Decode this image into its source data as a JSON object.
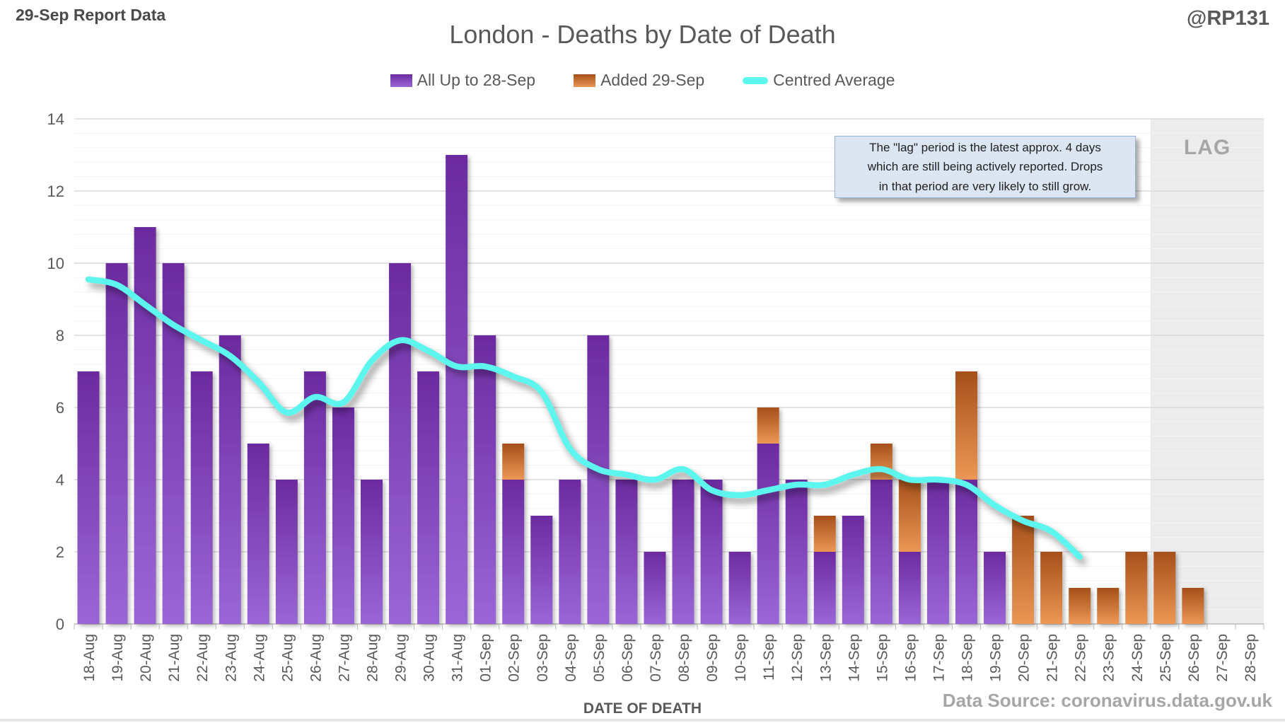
{
  "header": {
    "report_label": "29-Sep Report Data",
    "handle": "@RP131"
  },
  "title": "London - Deaths by Date of Death",
  "legend": [
    {
      "label": "All Up to 28-Sep",
      "swatch": "purple-gradient-box"
    },
    {
      "label": "Added 29-Sep",
      "swatch": "orange-gradient-box"
    },
    {
      "label": "Centred Average",
      "swatch": "cyan-line"
    }
  ],
  "annotation": {
    "lines": [
      "The \"lag\" period is the latest approx. 4 days",
      "which are still being actively reported. Drops",
      "in that period are very likely to still grow."
    ]
  },
  "lag_label": "LAG",
  "x_axis_title": "DATE OF DEATH",
  "source": "Data Source: coronavirus.data.gov.uk",
  "colors": {
    "purple_top": "#6c2ba0",
    "purple_bottom": "#9a66d6",
    "orange_top": "#a5501a",
    "orange_bottom": "#ec9755",
    "line_cyan": "#5bf6ee",
    "lag_background": "#ececec",
    "major_gridline": "#dadada",
    "minor_gridline": "#f3f3f3",
    "axis_line": "#bcbcbc",
    "axis_text": "#595959"
  },
  "chart_data": {
    "type": "bar",
    "stacked": true,
    "title": "London - Deaths by Date of Death",
    "xlabel": "DATE OF DEATH",
    "ylabel": "",
    "ylim": [
      0,
      14
    ],
    "y_major": 2,
    "y_minor": 0.4,
    "grid": true,
    "legend_position": "top",
    "categories": [
      "18-Aug",
      "19-Aug",
      "20-Aug",
      "21-Aug",
      "22-Aug",
      "23-Aug",
      "24-Aug",
      "25-Aug",
      "26-Aug",
      "27-Aug",
      "28-Aug",
      "29-Aug",
      "30-Aug",
      "31-Aug",
      "01-Sep",
      "02-Sep",
      "03-Sep",
      "04-Sep",
      "05-Sep",
      "06-Sep",
      "07-Sep",
      "08-Sep",
      "09-Sep",
      "10-Sep",
      "11-Sep",
      "12-Sep",
      "13-Sep",
      "14-Sep",
      "15-Sep",
      "16-Sep",
      "17-Sep",
      "18-Sep",
      "19-Sep",
      "20-Sep",
      "21-Sep",
      "22-Sep",
      "23-Sep",
      "24-Sep",
      "25-Sep",
      "26-Sep",
      "27-Sep",
      "28-Sep"
    ],
    "series": [
      {
        "name": "All Up to 28-Sep",
        "type": "bar",
        "values": [
          7,
          10,
          11,
          10,
          7,
          8,
          5,
          4,
          7,
          6,
          4,
          10,
          7,
          13,
          8,
          4,
          3,
          4,
          8,
          4,
          2,
          4,
          4,
          2,
          5,
          4,
          2,
          3,
          4,
          2,
          4,
          4,
          2,
          0,
          0,
          0,
          0,
          0,
          0,
          0,
          0,
          0
        ]
      },
      {
        "name": "Added 29-Sep",
        "type": "bar",
        "values": [
          0,
          0,
          0,
          0,
          0,
          0,
          0,
          0,
          0,
          0,
          0,
          0,
          0,
          0,
          0,
          1,
          0,
          0,
          0,
          0,
          0,
          0,
          0,
          0,
          1,
          0,
          1,
          0,
          1,
          2,
          0,
          3,
          0,
          3,
          2,
          1,
          1,
          2,
          2,
          1,
          0,
          0
        ]
      },
      {
        "name": "Centred Average",
        "type": "line",
        "values": [
          9.55,
          9.4,
          8.85,
          8.29,
          7.86,
          7.43,
          6.71,
          5.86,
          6.29,
          6.14,
          7.29,
          7.86,
          7.57,
          7.14,
          7.14,
          6.86,
          6.43,
          4.86,
          4.29,
          4.14,
          4.0,
          4.29,
          3.71,
          3.57,
          3.71,
          3.86,
          3.86,
          4.14,
          4.29,
          4.0,
          4.0,
          3.86,
          3.29,
          2.86,
          2.57,
          1.86,
          null,
          null,
          null,
          null,
          null,
          null
        ]
      }
    ],
    "lag_region": {
      "start_category": "25-Sep",
      "label": "LAG"
    }
  }
}
